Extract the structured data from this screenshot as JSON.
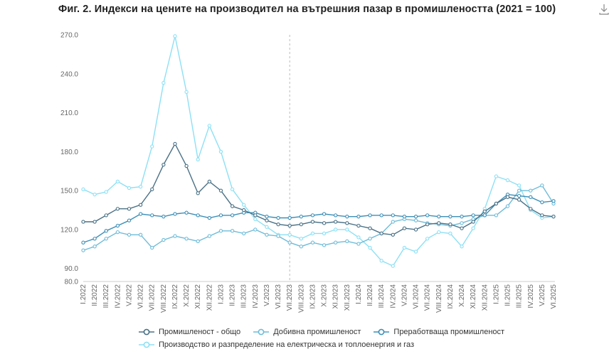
{
  "title": "Фиг. 2. Индекси на цените на производител на вътрешния пазар  в промишлеността  (2021 = 100)",
  "download_icon": "download-icon",
  "chart_data": {
    "type": "line",
    "title": "Фиг. 2. Индекси на цените на производител на вътрешния пазар  в промишлеността  (2021 = 100)",
    "y_ticks": [
      "270.0",
      "240.0",
      "210.0",
      "180.0",
      "150.0",
      "120.0",
      "90.0",
      "80.0"
    ],
    "ylim": [
      80,
      270
    ],
    "reference_line_at": "VII.2023",
    "categories": [
      "I.2022",
      "II.2022",
      "III.2022",
      "IV.2022",
      "V.2022",
      "VI.2022",
      "VII.2022",
      "VIII.2022",
      "IX.2022",
      "X.2022",
      "XI.2022",
      "XII.2022",
      "I.2023",
      "II.2023",
      "III.2023",
      "IV.2023",
      "V.2023",
      "VI.2023",
      "VII.2023",
      "VIII.2023",
      "IX.2023",
      "X.2023",
      "XI.2023",
      "XII.2023",
      "I.2024",
      "II.2024",
      "III.2024",
      "IV.2024",
      "V.2024",
      "VI.2024",
      "VII.2024",
      "VIII.2024",
      "IX.2024",
      "X.2024",
      "XI.2024",
      "XII.2024",
      "I.2025",
      "II.2025",
      "III.2025",
      "IV.2025",
      "V.2025",
      "VI.2025"
    ],
    "series": [
      {
        "name": "Промишленост - общо",
        "color": "#4a7186",
        "values": [
          126,
          126,
          131,
          136,
          136,
          139,
          151,
          170,
          186,
          169,
          148,
          157,
          150,
          138,
          135,
          131,
          127,
          124,
          123,
          124,
          126,
          125,
          126,
          125,
          123,
          121,
          117,
          116,
          121,
          120,
          124,
          125,
          124,
          121,
          126,
          134,
          140,
          145,
          143,
          136,
          131,
          130
        ]
      },
      {
        "name": "Добивна промишленост",
        "color": "#6fbcd9",
        "values": [
          104,
          107,
          113,
          118,
          116,
          116,
          106,
          112,
          115,
          113,
          111,
          115,
          119,
          119,
          117,
          120,
          116,
          115,
          110,
          107,
          110,
          108,
          110,
          111,
          109,
          113,
          117,
          126,
          128,
          127,
          125,
          124,
          123,
          125,
          128,
          131,
          131,
          138,
          150,
          150,
          154,
          140
        ]
      },
      {
        "name": "Преработваща промишленост",
        "color": "#3d8fb7",
        "values": [
          110,
          113,
          119,
          123,
          127,
          132,
          131,
          130,
          132,
          133,
          131,
          129,
          131,
          131,
          133,
          133,
          130,
          129,
          129,
          130,
          131,
          132,
          131,
          130,
          130,
          131,
          131,
          131,
          130,
          130,
          131,
          130,
          130,
          130,
          131,
          131,
          140,
          147,
          146,
          145,
          141,
          142
        ]
      },
      {
        "name": "Производство и разпределение на електрическа и топлоенергия и газ",
        "color": "#8de0f5",
        "values": [
          151,
          147,
          149,
          157,
          152,
          153,
          184,
          233,
          269,
          226,
          174,
          200,
          180,
          151,
          139,
          128,
          122,
          116,
          116,
          113,
          117,
          117,
          120,
          120,
          114,
          106,
          96,
          92,
          106,
          103,
          113,
          118,
          117,
          107,
          121,
          136,
          161,
          158,
          154,
          135,
          129,
          130
        ]
      }
    ],
    "legend": [
      "Промишленост - общо",
      "Добивна промишленост",
      "Преработваща промишленост",
      "Производство и разпределение на електрическа и топлоенергия и газ"
    ],
    "legend_placement": "bottom"
  }
}
